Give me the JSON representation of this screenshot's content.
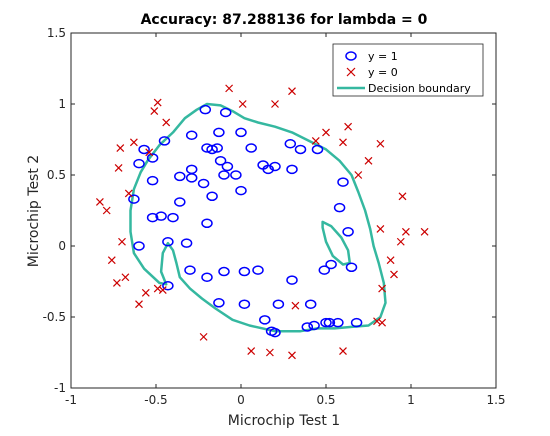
{
  "chart_data": {
    "type": "scatter",
    "title": "Accuracy: 87.288136 for lambda = 0",
    "xlabel": "Microchip Test 1",
    "ylabel": "Microchip Test 2",
    "xlim": [
      -1,
      1.5
    ],
    "ylim": [
      -1,
      1.5
    ],
    "xticks": [
      -1,
      -0.5,
      0,
      0.5,
      1,
      1.5
    ],
    "yticks": [
      -1,
      -0.5,
      0,
      0.5,
      1,
      1.5
    ],
    "xtick_labels": [
      "-1",
      "-0.5",
      "0",
      "0.5",
      "1",
      "1.5"
    ],
    "ytick_labels": [
      "-1",
      "-0.5",
      "0",
      "0.5",
      "1",
      "1.5"
    ],
    "grid": false,
    "legend_position": "top-right",
    "colors": {
      "positive": "#0000ff",
      "negative": "#cc0000",
      "boundary": "#35b8a0",
      "axis": "#262626"
    },
    "series": [
      {
        "name": "y = 1",
        "marker": "circle",
        "points": [
          [
            -0.21,
            0.96
          ],
          [
            -0.09,
            0.94
          ],
          [
            0.0,
            0.8
          ],
          [
            -0.13,
            0.8
          ],
          [
            -0.29,
            0.78
          ],
          [
            -0.45,
            0.74
          ],
          [
            -0.57,
            0.68
          ],
          [
            -0.52,
            0.62
          ],
          [
            -0.6,
            0.58
          ],
          [
            -0.2,
            0.69
          ],
          [
            -0.17,
            0.68
          ],
          [
            -0.14,
            0.69
          ],
          [
            -0.12,
            0.6
          ],
          [
            -0.08,
            0.56
          ],
          [
            -0.29,
            0.54
          ],
          [
            -0.36,
            0.49
          ],
          [
            -0.29,
            0.48
          ],
          [
            -0.1,
            0.5
          ],
          [
            -0.03,
            0.5
          ],
          [
            -0.52,
            0.46
          ],
          [
            -0.22,
            0.44
          ],
          [
            0.06,
            0.69
          ],
          [
            0.13,
            0.57
          ],
          [
            0.16,
            0.54
          ],
          [
            0.2,
            0.56
          ],
          [
            0.3,
            0.54
          ],
          [
            0.35,
            0.68
          ],
          [
            0.29,
            0.72
          ],
          [
            0.45,
            0.68
          ],
          [
            0.6,
            0.45
          ],
          [
            0.0,
            0.39
          ],
          [
            -0.17,
            0.35
          ],
          [
            -0.63,
            0.33
          ],
          [
            -0.36,
            0.31
          ],
          [
            -0.47,
            0.21
          ],
          [
            -0.52,
            0.2
          ],
          [
            -0.4,
            0.2
          ],
          [
            -0.2,
            0.16
          ],
          [
            0.58,
            0.27
          ],
          [
            0.63,
            0.1
          ],
          [
            -0.43,
            0.03
          ],
          [
            -0.6,
            0.0
          ],
          [
            -0.32,
            0.02
          ],
          [
            -0.3,
            -0.17
          ],
          [
            -0.1,
            -0.18
          ],
          [
            0.02,
            -0.18
          ],
          [
            0.1,
            -0.17
          ],
          [
            -0.2,
            -0.22
          ],
          [
            -0.43,
            -0.28
          ],
          [
            0.3,
            -0.24
          ],
          [
            0.49,
            -0.17
          ],
          [
            0.65,
            -0.15
          ],
          [
            0.53,
            -0.13
          ],
          [
            -0.13,
            -0.4
          ],
          [
            0.02,
            -0.41
          ],
          [
            0.22,
            -0.41
          ],
          [
            0.41,
            -0.41
          ],
          [
            0.14,
            -0.52
          ],
          [
            0.5,
            -0.54
          ],
          [
            0.52,
            -0.54
          ],
          [
            0.57,
            -0.54
          ],
          [
            0.68,
            -0.54
          ],
          [
            0.43,
            -0.56
          ],
          [
            0.39,
            -0.57
          ],
          [
            0.18,
            -0.6
          ],
          [
            0.2,
            -0.61
          ]
        ]
      },
      {
        "name": "y = 0",
        "marker": "x",
        "points": [
          [
            -0.07,
            1.11
          ],
          [
            0.01,
            1.0
          ],
          [
            0.3,
            1.09
          ],
          [
            -0.49,
            1.01
          ],
          [
            -0.51,
            0.95
          ],
          [
            -0.44,
            0.87
          ],
          [
            0.2,
            1.0
          ],
          [
            -0.63,
            0.73
          ],
          [
            -0.71,
            0.69
          ],
          [
            -0.54,
            0.66
          ],
          [
            -0.72,
            0.55
          ],
          [
            0.5,
            0.8
          ],
          [
            0.63,
            0.84
          ],
          [
            0.6,
            0.73
          ],
          [
            0.44,
            0.74
          ],
          [
            0.75,
            0.6
          ],
          [
            0.82,
            0.72
          ],
          [
            0.69,
            0.5
          ],
          [
            -0.66,
            0.37
          ],
          [
            -0.83,
            0.31
          ],
          [
            -0.79,
            0.25
          ],
          [
            0.95,
            0.35
          ],
          [
            0.82,
            0.12
          ],
          [
            0.97,
            0.1
          ],
          [
            -0.7,
            0.03
          ],
          [
            1.08,
            0.1
          ],
          [
            0.94,
            0.03
          ],
          [
            -0.76,
            -0.1
          ],
          [
            -0.68,
            -0.22
          ],
          [
            0.88,
            -0.1
          ],
          [
            0.9,
            -0.2
          ],
          [
            -0.73,
            -0.26
          ],
          [
            -0.56,
            -0.33
          ],
          [
            -0.49,
            -0.3
          ],
          [
            -0.46,
            -0.31
          ],
          [
            0.83,
            -0.3
          ],
          [
            -0.6,
            -0.41
          ],
          [
            0.32,
            -0.42
          ],
          [
            0.8,
            -0.53
          ],
          [
            0.83,
            -0.54
          ],
          [
            -0.22,
            -0.64
          ],
          [
            0.06,
            -0.74
          ],
          [
            0.17,
            -0.75
          ],
          [
            0.3,
            -0.77
          ],
          [
            0.6,
            -0.74
          ]
        ]
      }
    ],
    "decision_boundary": {
      "name": "Decision boundary",
      "outer": [
        [
          -0.55,
          0.6
        ],
        [
          -0.48,
          0.71
        ],
        [
          -0.4,
          0.8
        ],
        [
          -0.33,
          0.9
        ],
        [
          -0.26,
          0.96
        ],
        [
          -0.2,
          1.0
        ],
        [
          -0.12,
          0.99
        ],
        [
          -0.05,
          0.95
        ],
        [
          0.02,
          0.9
        ],
        [
          0.1,
          0.87
        ],
        [
          0.2,
          0.84
        ],
        [
          0.3,
          0.8
        ],
        [
          0.4,
          0.74
        ],
        [
          0.5,
          0.68
        ],
        [
          0.58,
          0.6
        ],
        [
          0.65,
          0.5
        ],
        [
          0.69,
          0.38
        ],
        [
          0.73,
          0.25
        ],
        [
          0.76,
          0.12
        ],
        [
          0.78,
          0.0
        ],
        [
          0.81,
          -0.12
        ],
        [
          0.84,
          -0.26
        ],
        [
          0.85,
          -0.4
        ],
        [
          0.82,
          -0.5
        ],
        [
          0.75,
          -0.56
        ],
        [
          0.65,
          -0.57
        ],
        [
          0.55,
          -0.58
        ],
        [
          0.45,
          -0.58
        ],
        [
          0.35,
          -0.6
        ],
        [
          0.2,
          -0.6
        ],
        [
          0.05,
          -0.56
        ],
        [
          -0.05,
          -0.52
        ],
        [
          -0.15,
          -0.44
        ],
        [
          -0.23,
          -0.37
        ],
        [
          -0.3,
          -0.3
        ],
        [
          -0.36,
          -0.22
        ],
        [
          -0.38,
          -0.12
        ],
        [
          -0.4,
          -0.03
        ],
        [
          -0.43,
          0.02
        ],
        [
          -0.46,
          -0.05
        ],
        [
          -0.47,
          -0.18
        ],
        [
          -0.44,
          -0.27
        ],
        [
          -0.48,
          -0.26
        ],
        [
          -0.57,
          -0.16
        ],
        [
          -0.63,
          -0.05
        ],
        [
          -0.65,
          0.1
        ],
        [
          -0.65,
          0.25
        ],
        [
          -0.63,
          0.4
        ],
        [
          -0.59,
          0.52
        ],
        [
          -0.55,
          0.6
        ]
      ],
      "inner": [
        [
          0.48,
          0.17
        ],
        [
          0.53,
          0.14
        ],
        [
          0.59,
          0.06
        ],
        [
          0.63,
          -0.03
        ],
        [
          0.64,
          -0.12
        ],
        [
          0.6,
          -0.13
        ],
        [
          0.54,
          -0.07
        ],
        [
          0.5,
          0.03
        ],
        [
          0.48,
          0.13
        ],
        [
          0.48,
          0.17
        ]
      ]
    }
  }
}
